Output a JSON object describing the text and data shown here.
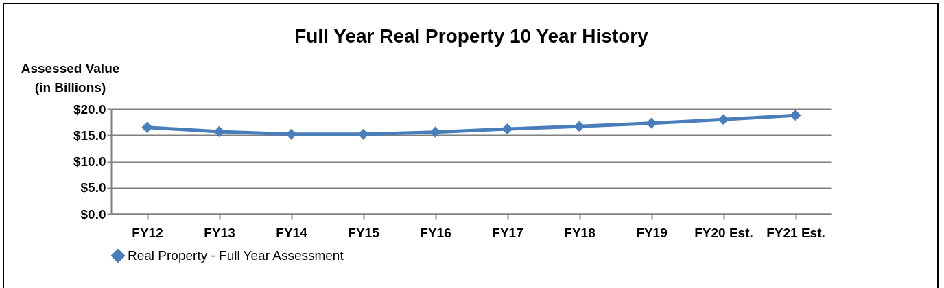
{
  "chart_data": {
    "type": "line",
    "title": "Full Year Real Property 10 Year History",
    "ylabel": "Assessed Value\n(in Billions)",
    "categories": [
      "FY12",
      "FY13",
      "FY14",
      "FY15",
      "FY16",
      "FY17",
      "FY18",
      "FY19",
      "FY20 Est.",
      "FY21 Est."
    ],
    "series": [
      {
        "name": "Real Property - Full Year Assessment",
        "color": "#4a7ebb",
        "values": [
          16.5,
          15.7,
          15.2,
          15.2,
          15.6,
          16.2,
          16.7,
          17.3,
          18.0,
          18.8
        ]
      }
    ],
    "ylim": [
      0,
      20
    ],
    "yticks": [
      {
        "value": 0,
        "label": "$0.0"
      },
      {
        "value": 5,
        "label": "$5.0"
      },
      {
        "value": 10,
        "label": "$10.0"
      },
      {
        "value": 15,
        "label": "$15.0"
      },
      {
        "value": 20,
        "label": "$20.0"
      }
    ],
    "grid": "y",
    "legend": "bottom",
    "marker": "diamond",
    "line_style": "solid"
  }
}
